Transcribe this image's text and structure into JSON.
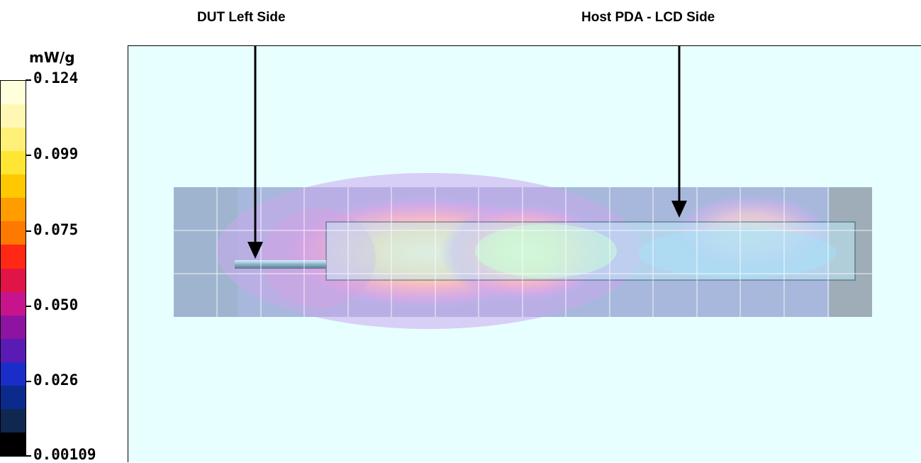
{
  "annotations": {
    "dut_label": "DUT Left Side",
    "host_label": "Host PDA - LCD Side"
  },
  "colorbar": {
    "unit": "mW/g",
    "ticks": [
      "0.124",
      "0.099",
      "0.075",
      "0.050",
      "0.026",
      "0.00109"
    ],
    "colors": [
      "#000000",
      "#102850",
      "#0a2a8c",
      "#1a2dc8",
      "#5a1ab4",
      "#8c14a0",
      "#c8148c",
      "#e01446",
      "#ff2814",
      "#ff7800",
      "#ff9c00",
      "#ffc800",
      "#ffe632",
      "#fff078",
      "#fff8b4",
      "#ffffdc"
    ],
    "background_color": "#e8ffff"
  }
}
